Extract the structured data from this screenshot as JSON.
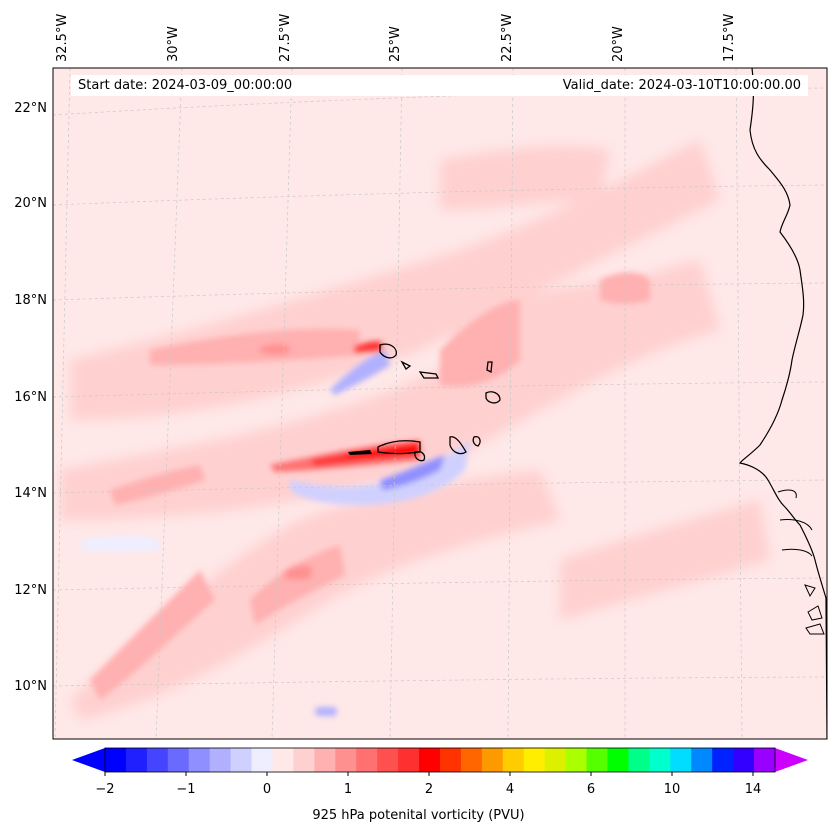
{
  "header": {
    "start_date": "Start date: 2024-03-09_00:00:00",
    "valid_date": "Valid_date: 2024-03-10T10:00:00.00"
  },
  "map": {
    "longitude_labels": [
      "32.5°W",
      "30°W",
      "27.5°W",
      "25°W",
      "22.5°W",
      "20°W",
      "17.5°W"
    ],
    "latitude_labels": [
      "22°N",
      "20°N",
      "18°N",
      "16°N",
      "14°N",
      "12°N",
      "10°N"
    ],
    "region": "Cape Verde islands and West African coast, eastern Atlantic"
  },
  "colorbar": {
    "title": "925 hPa potenital vorticity (PVU)",
    "tick_labels": [
      "−2",
      "−1",
      "0",
      "1",
      "2",
      "4",
      "6",
      "10",
      "14"
    ],
    "colors": [
      "#0000ff",
      "#2020ff",
      "#4545ff",
      "#6a6aff",
      "#8f8fff",
      "#b0b0ff",
      "#d0d0ff",
      "#eeeeff",
      "#ffe8e8",
      "#ffd0d0",
      "#ffb0b0",
      "#ff9090",
      "#ff7070",
      "#ff5050",
      "#ff3030",
      "#ff0000",
      "#ff3300",
      "#ff6600",
      "#ff9900",
      "#ffcc00",
      "#ffee00",
      "#ddf000",
      "#aaff00",
      "#55ff00",
      "#00ff00",
      "#00ff88",
      "#00ffcc",
      "#00ddff",
      "#0088ff",
      "#0022ff",
      "#3300ff",
      "#9900ff"
    ],
    "extend_low": "#0000ff",
    "extend_high": "#cc00ff"
  },
  "colors": {
    "background_field": "#ffe8e8",
    "coastline": "#000000",
    "grid": "#aaaaaa"
  }
}
